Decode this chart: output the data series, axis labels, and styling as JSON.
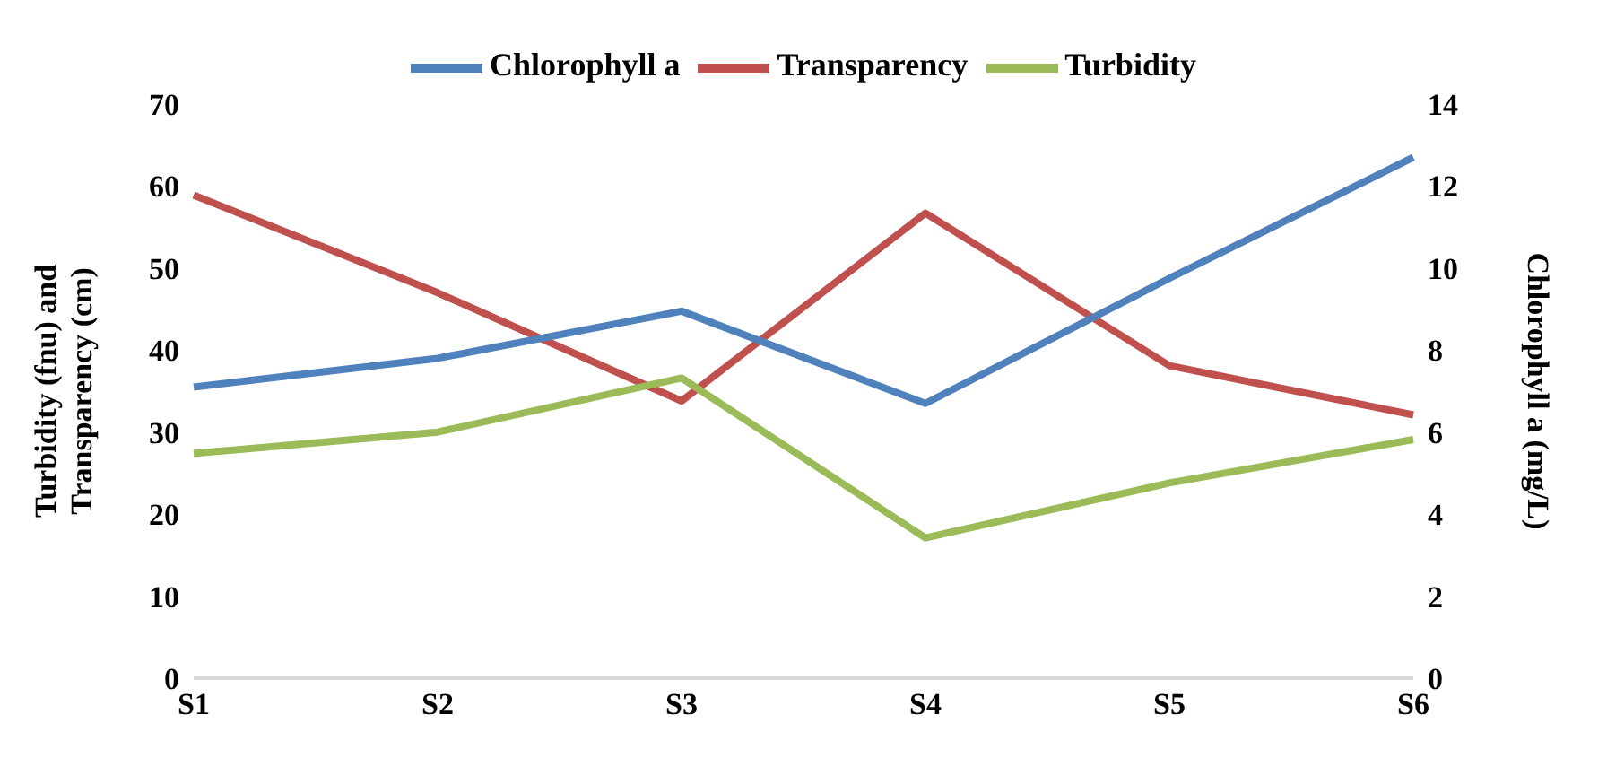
{
  "chart_data": {
    "type": "line",
    "categories": [
      "S1",
      "S2",
      "S3",
      "S4",
      "S5",
      "S6"
    ],
    "ylabel": "Turbidity  (fnu) and\nTransparency (cm)",
    "y2label": "Chlorophyll  a (mg/L)",
    "ylim": [
      0,
      70
    ],
    "yticks": [
      0,
      10,
      20,
      30,
      40,
      50,
      60,
      70
    ],
    "y2lim": [
      0,
      14
    ],
    "y2ticks": [
      0,
      2,
      4,
      6,
      8,
      10,
      12,
      14
    ],
    "grid": false,
    "legend": "top",
    "marker": "none",
    "line_style": "solid",
    "series": [
      {
        "name": "Transparency",
        "color": "#c0504d",
        "values": [
          58.9,
          47,
          33.8,
          56.7,
          38.1,
          32.1
        ]
      },
      {
        "name": "Turbidity",
        "color": "#9bbb59",
        "values": [
          27.4,
          30,
          36.6,
          17.1,
          23.8,
          29.1
        ]
      },
      {
        "name": "Chlorophyll a",
        "color": "#4f81bd",
        "axis": "y2",
        "values": [
          7.1,
          7.8,
          8.95,
          6.7,
          9.75,
          12.7
        ]
      }
    ]
  }
}
